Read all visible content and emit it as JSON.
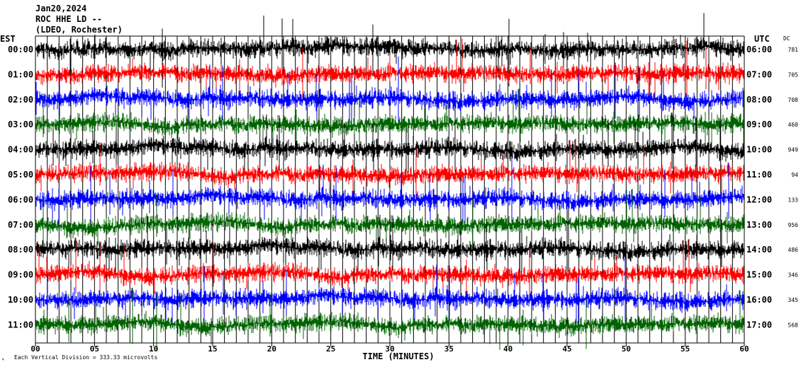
{
  "header": {
    "date": "Jan20,2024",
    "station": "ROC HHE LD --",
    "location": "(LDEO, Rochester)"
  },
  "labels": {
    "left_zone": "EST",
    "right_zone": "UTC",
    "dc_header": "DC",
    "xlabel": "TIME (MINUTES)",
    "footnote": "Each Vertical Division = 333.33 microvolts",
    "corner_mark": "ᴹ"
  },
  "colors": {
    "black": "#000000",
    "red": "#ff0000",
    "blue": "#0000ff",
    "green": "#006400"
  },
  "chart_data": {
    "type": "line",
    "subtype": "helicorder",
    "xlabel": "TIME (MINUTES)",
    "xlim": [
      0,
      60
    ],
    "x_ticks": [
      "00",
      "05",
      "10",
      "15",
      "20",
      "25",
      "30",
      "35",
      "40",
      "45",
      "50",
      "55",
      "60"
    ],
    "vertical_division_microvolts": 333.33,
    "traces": [
      {
        "est": "00:00",
        "utc": "06:00",
        "dc": "781",
        "color": "black"
      },
      {
        "est": "01:00",
        "utc": "07:00",
        "dc": "705",
        "color": "red"
      },
      {
        "est": "02:00",
        "utc": "08:00",
        "dc": "708",
        "color": "blue"
      },
      {
        "est": "03:00",
        "utc": "09:00",
        "dc": "460",
        "color": "green"
      },
      {
        "est": "04:00",
        "utc": "10:00",
        "dc": "949",
        "color": "black"
      },
      {
        "est": "05:00",
        "utc": "11:00",
        "dc": "94",
        "color": "red"
      },
      {
        "est": "06:00",
        "utc": "12:00",
        "dc": "133",
        "color": "blue"
      },
      {
        "est": "07:00",
        "utc": "13:00",
        "dc": "956",
        "color": "green"
      },
      {
        "est": "08:00",
        "utc": "14:00",
        "dc": "486",
        "color": "black"
      },
      {
        "est": "09:00",
        "utc": "15:00",
        "dc": "346",
        "color": "red"
      },
      {
        "est": "10:00",
        "utc": "16:00",
        "dc": "345",
        "color": "blue"
      },
      {
        "est": "11:00",
        "utc": "17:00",
        "dc": "568",
        "color": "green"
      }
    ]
  }
}
